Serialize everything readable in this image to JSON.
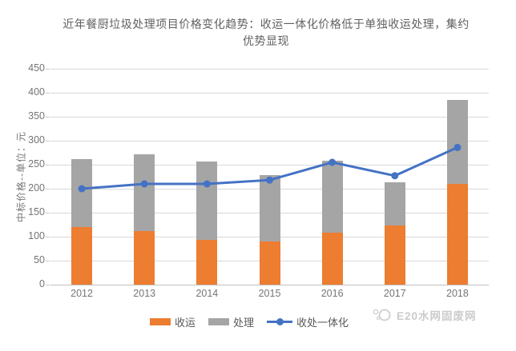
{
  "title": {
    "line1": "近年餐厨垃圾处理项目价格变化趋势：收运一体化价格低于单独收运处理，集约",
    "line2": "优势显现"
  },
  "watermark": {
    "text": "E20水网固废网"
  },
  "chart_data": {
    "type": "bar",
    "subtype": "stacked-bars-with-line-overlay",
    "title": "近年餐厨垃圾处理项目价格变化趋势：收运一体化价格低于单独收运处理，集约优势显现",
    "categories": [
      "2012",
      "2013",
      "2014",
      "2015",
      "2016",
      "2017",
      "2018"
    ],
    "series": [
      {
        "name": "收运",
        "type": "bar",
        "color": "#ED7D31",
        "values": [
          120,
          111,
          93,
          90,
          108,
          123,
          210
        ]
      },
      {
        "name": "处理",
        "type": "bar",
        "color": "#A5A5A5",
        "values": [
          142,
          161,
          164,
          138,
          150,
          90,
          175
        ]
      },
      {
        "name": "收处一体化",
        "type": "line",
        "color": "#4472C4",
        "values": [
          200,
          210,
          210,
          218,
          255,
          227,
          286
        ]
      }
    ],
    "stacked_totals": [
      262,
      272,
      257,
      228,
      258,
      213,
      385
    ],
    "ylabel": "中标价格--单位：元",
    "xlabel": "",
    "ylim": [
      0,
      450
    ],
    "ytick_step": 50,
    "yticks": [
      0,
      50,
      100,
      150,
      200,
      250,
      300,
      350,
      400,
      450
    ],
    "grid": true,
    "legend_position": "bottom"
  },
  "colors": {
    "grid": "#D9D9D9",
    "axis": "#C0C0C0",
    "tick_label": "#757575",
    "title_text": "#616161",
    "watermark": "#CBCBCB"
  }
}
